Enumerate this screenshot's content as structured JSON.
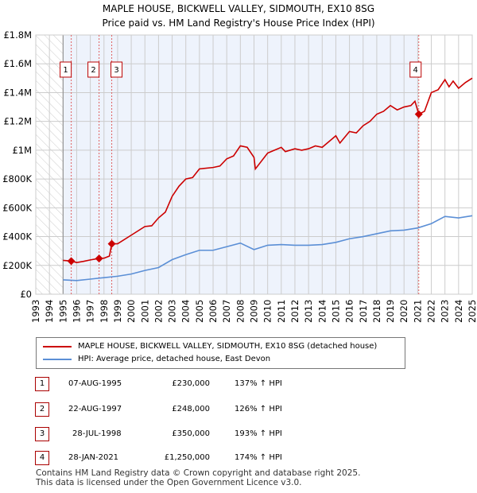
{
  "chart_data": {
    "type": "line",
    "title": "MAPLE HOUSE, BICKWELL VALLEY, SIDMOUTH, EX10 8SG",
    "subtitle": "Price paid vs. HM Land Registry's House Price Index (HPI)",
    "xlim": [
      1993,
      2025
    ],
    "ylim": [
      0,
      1800000
    ],
    "x_ticks": [
      "1993",
      "1994",
      "1995",
      "1996",
      "1997",
      "1998",
      "1999",
      "2000",
      "2001",
      "2002",
      "2003",
      "2004",
      "2005",
      "2006",
      "2007",
      "2008",
      "2009",
      "2010",
      "2011",
      "2012",
      "2013",
      "2014",
      "2015",
      "2016",
      "2017",
      "2018",
      "2019",
      "2020",
      "2021",
      "2022",
      "2023",
      "2024",
      "2025"
    ],
    "y_ticks": [
      {
        "v": 0,
        "label": "£0"
      },
      {
        "v": 200000,
        "label": "£200K"
      },
      {
        "v": 400000,
        "label": "£400K"
      },
      {
        "v": 600000,
        "label": "£600K"
      },
      {
        "v": 800000,
        "label": "£800K"
      },
      {
        "v": 1000000,
        "label": "£1M"
      },
      {
        "v": 1200000,
        "label": "£1.2M"
      },
      {
        "v": 1400000,
        "label": "£1.4M"
      },
      {
        "v": 1600000,
        "label": "£1.6M"
      },
      {
        "v": 1800000,
        "label": "£1.8M"
      }
    ],
    "colors": {
      "property": "#cc0000",
      "hpi": "#5b8fd6",
      "shade": "#eef3fc"
    },
    "series": [
      {
        "name": "MAPLE HOUSE, BICKWELL VALLEY, SIDMOUTH, EX10 8SG (detached house)",
        "points": [
          [
            1995.0,
            235000
          ],
          [
            1995.6,
            230000
          ],
          [
            1996,
            220000
          ],
          [
            1996.5,
            228000
          ],
          [
            1997,
            238000
          ],
          [
            1997.6,
            248000
          ],
          [
            1998,
            250000
          ],
          [
            1998.4,
            265000
          ],
          [
            1998.57,
            350000
          ],
          [
            1999,
            350000
          ],
          [
            2000,
            410000
          ],
          [
            2001,
            470000
          ],
          [
            2001.5,
            475000
          ],
          [
            2002,
            530000
          ],
          [
            2002.5,
            570000
          ],
          [
            2003,
            680000
          ],
          [
            2003.5,
            750000
          ],
          [
            2004,
            800000
          ],
          [
            2004.5,
            810000
          ],
          [
            2005,
            870000
          ],
          [
            2006,
            880000
          ],
          [
            2006.5,
            890000
          ],
          [
            2007,
            940000
          ],
          [
            2007.5,
            960000
          ],
          [
            2008,
            1030000
          ],
          [
            2008.5,
            1020000
          ],
          [
            2009,
            950000
          ],
          [
            2009.1,
            870000
          ],
          [
            2010,
            980000
          ],
          [
            2010.5,
            1000000
          ],
          [
            2011,
            1020000
          ],
          [
            2011.3,
            990000
          ],
          [
            2012,
            1010000
          ],
          [
            2012.5,
            1000000
          ],
          [
            2013,
            1010000
          ],
          [
            2013.5,
            1030000
          ],
          [
            2014,
            1020000
          ],
          [
            2015,
            1100000
          ],
          [
            2015.3,
            1050000
          ],
          [
            2016,
            1130000
          ],
          [
            2016.5,
            1120000
          ],
          [
            2017,
            1170000
          ],
          [
            2017.5,
            1200000
          ],
          [
            2018,
            1250000
          ],
          [
            2018.5,
            1270000
          ],
          [
            2019,
            1310000
          ],
          [
            2019.5,
            1280000
          ],
          [
            2020,
            1300000
          ],
          [
            2020.5,
            1310000
          ],
          [
            2020.8,
            1340000
          ],
          [
            2021.08,
            1250000
          ],
          [
            2021.5,
            1270000
          ],
          [
            2022,
            1400000
          ],
          [
            2022.5,
            1420000
          ],
          [
            2023,
            1490000
          ],
          [
            2023.3,
            1440000
          ],
          [
            2023.6,
            1480000
          ],
          [
            2024,
            1430000
          ],
          [
            2024.5,
            1470000
          ],
          [
            2025,
            1500000
          ]
        ]
      },
      {
        "name": "HPI: Average price, detached house, East Devon",
        "points": [
          [
            1995,
            100000
          ],
          [
            1996,
            95000
          ],
          [
            1997,
            105000
          ],
          [
            1998,
            115000
          ],
          [
            1999,
            125000
          ],
          [
            2000,
            140000
          ],
          [
            2001,
            165000
          ],
          [
            2002,
            185000
          ],
          [
            2003,
            240000
          ],
          [
            2004,
            275000
          ],
          [
            2005,
            305000
          ],
          [
            2006,
            305000
          ],
          [
            2007,
            330000
          ],
          [
            2008,
            355000
          ],
          [
            2009,
            310000
          ],
          [
            2010,
            340000
          ],
          [
            2011,
            345000
          ],
          [
            2012,
            340000
          ],
          [
            2013,
            340000
          ],
          [
            2014,
            345000
          ],
          [
            2015,
            360000
          ],
          [
            2016,
            385000
          ],
          [
            2017,
            400000
          ],
          [
            2018,
            420000
          ],
          [
            2019,
            440000
          ],
          [
            2020,
            445000
          ],
          [
            2021,
            460000
          ],
          [
            2022,
            490000
          ],
          [
            2023,
            540000
          ],
          [
            2024,
            530000
          ],
          [
            2025,
            545000
          ]
        ]
      }
    ],
    "sales": [
      {
        "n": "1",
        "x": 1995.6,
        "y": 230000
      },
      {
        "n": "2",
        "x": 1997.64,
        "y": 248000
      },
      {
        "n": "3",
        "x": 1998.57,
        "y": 350000
      },
      {
        "n": "4",
        "x": 2021.08,
        "y": 1250000
      }
    ]
  },
  "table": [
    {
      "n": "1",
      "date": "07-AUG-1995",
      "price": "£230,000",
      "hpi": "137% ↑ HPI"
    },
    {
      "n": "2",
      "date": "22-AUG-1997",
      "price": "£248,000",
      "hpi": "126% ↑ HPI"
    },
    {
      "n": "3",
      "date": "28-JUL-1998",
      "price": "£350,000",
      "hpi": "193% ↑ HPI"
    },
    {
      "n": "4",
      "date": "28-JAN-2021",
      "price": "£1,250,000",
      "hpi": "174% ↑ HPI"
    }
  ],
  "footer": [
    "Contains HM Land Registry data © Crown copyright and database right 2025.",
    "This data is licensed under the Open Government Licence v3.0."
  ]
}
